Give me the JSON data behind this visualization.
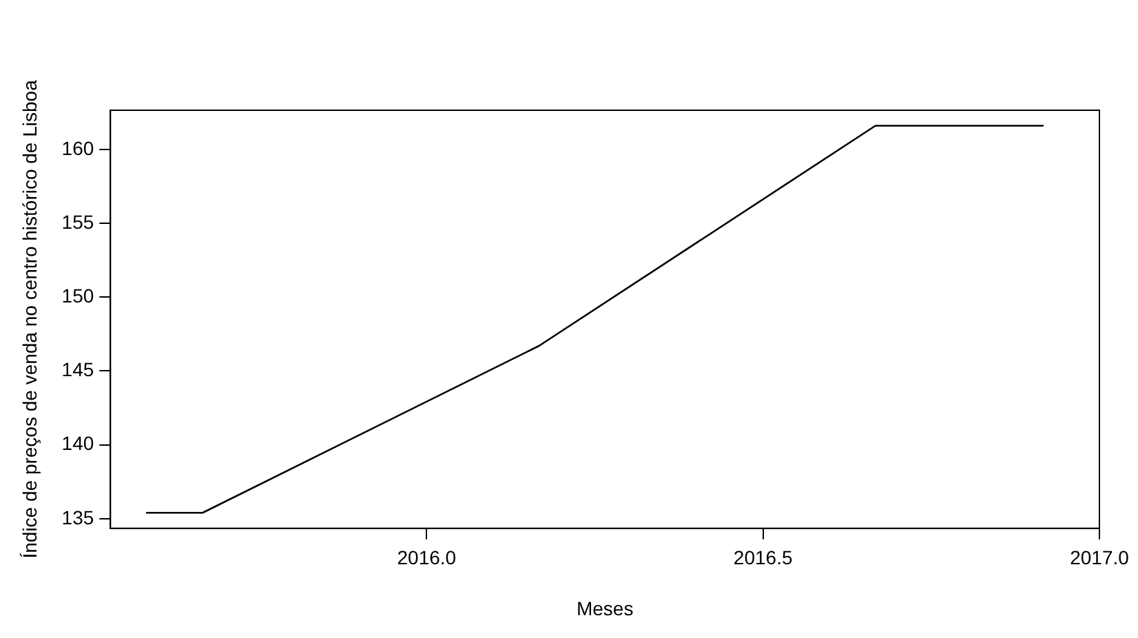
{
  "chart_data": {
    "type": "line",
    "xlabel": "Meses",
    "ylabel": "Índice de preços de venda no centro histórico de Lisboa",
    "x": [
      2015.583,
      2015.667,
      2016.167,
      2016.667,
      2016.917
    ],
    "series": [
      {
        "color": "#000000",
        "values": [
          135.4,
          135.4,
          146.7,
          161.6,
          161.6
        ]
      }
    ],
    "xlim": [
      2015.53,
      2017.0
    ],
    "xticks": [
      {
        "value": 2016,
        "label": "2016.0"
      },
      {
        "value": 2016.5,
        "label": "2016.5"
      },
      {
        "value": 2017,
        "label": "2017.0"
      }
    ],
    "ylim": [
      134.35,
      162.65
    ],
    "yticks": [
      135,
      140,
      145,
      150,
      155,
      160
    ],
    "grid": false,
    "legend": false,
    "marker": "none",
    "line_style": "solid"
  }
}
